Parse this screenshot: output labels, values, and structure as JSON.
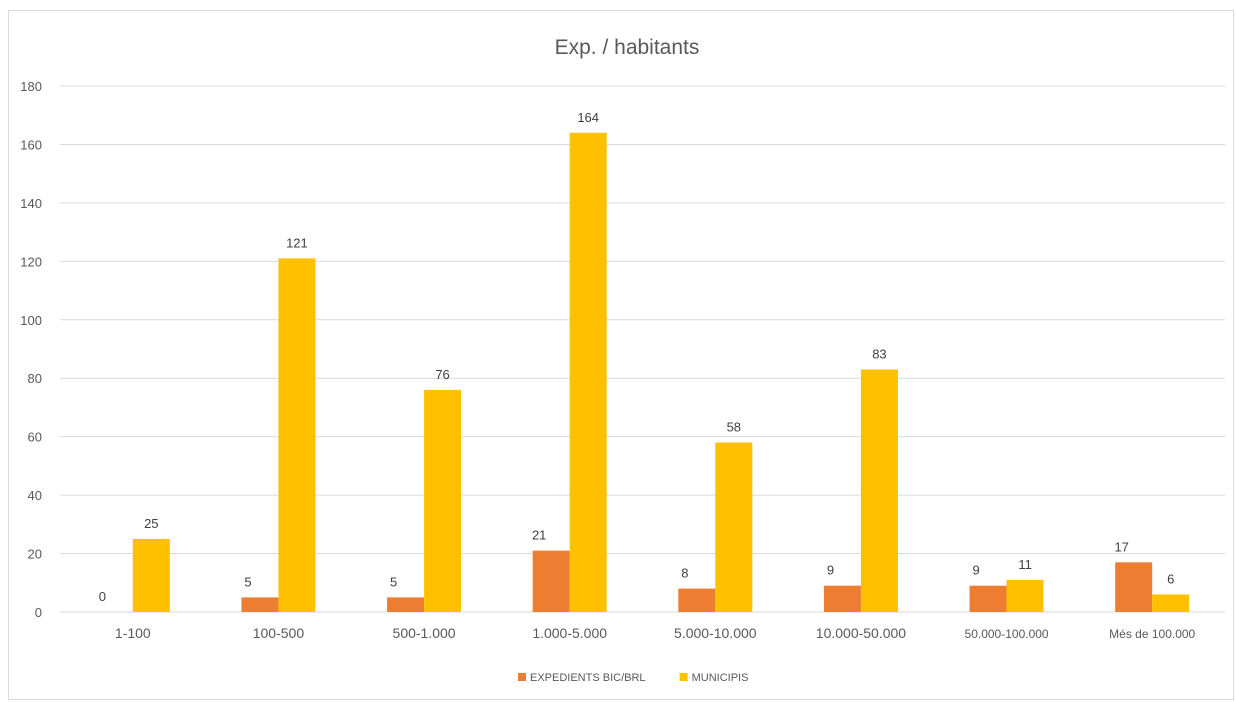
{
  "chart_data": {
    "type": "bar",
    "title": "Exp. / habitants",
    "xlabel": "",
    "ylabel": "",
    "categories": [
      "1-100",
      "100-500",
      "500-1.000",
      "1.000-5.000",
      "5.000-10.000",
      "10.000-50.000",
      "50.000-100.000",
      "Més de 100.000"
    ],
    "series": [
      {
        "name": "EXPEDIENTS BIC/BRL",
        "values": [
          0,
          5,
          5,
          21,
          8,
          9,
          9,
          17
        ],
        "color": "#ED7D31"
      },
      {
        "name": "MUNICIPIS",
        "values": [
          25,
          121,
          76,
          164,
          58,
          83,
          11,
          6
        ],
        "color": "#FFC000"
      }
    ],
    "ylim": [
      0,
      180
    ],
    "yticks": [
      0,
      20,
      40,
      60,
      80,
      100,
      120,
      140,
      160,
      180
    ],
    "grid": true,
    "gridColor": "#d9d9d9",
    "legend_position": "bottom",
    "data_labels": true
  }
}
